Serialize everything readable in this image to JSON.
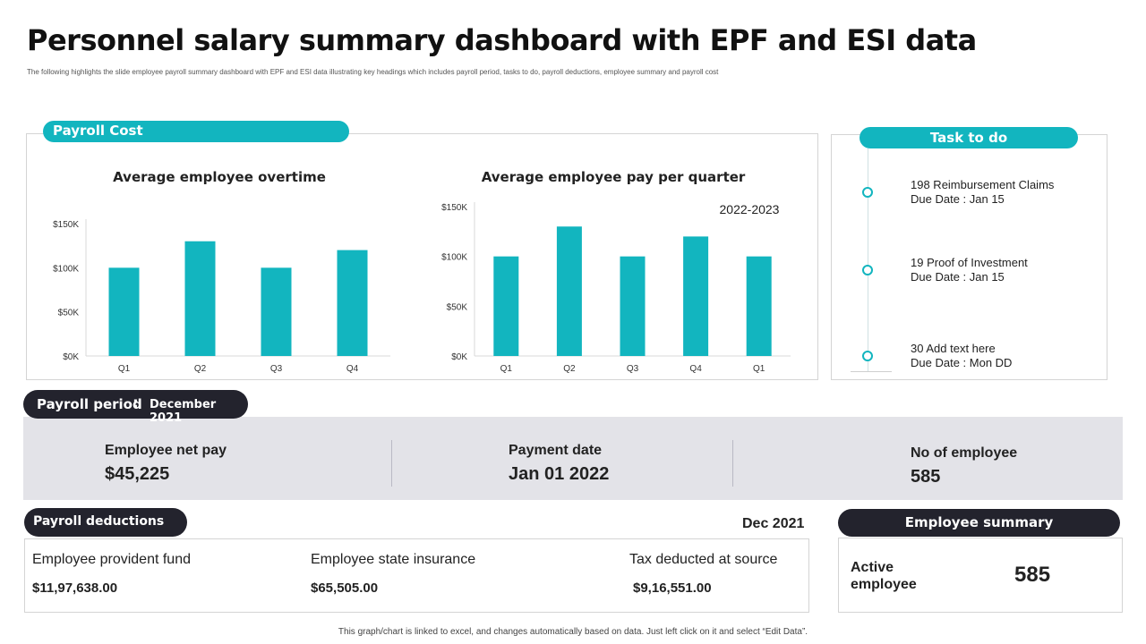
{
  "header": {
    "title": "Personnel salary summary dashboard with EPF and ESI data",
    "subtitle": "The  following highlights the slide employee payroll summary dashboard with EPF and ESI data illustrating key headings which includes payroll period,  tasks to do,  payroll deductions, employee summary and payroll cost"
  },
  "payroll_cost": {
    "label": "Payroll Cost"
  },
  "chart_data": [
    {
      "type": "bar",
      "title": "Average employee overtime",
      "categories": [
        "Q1",
        "Q2",
        "Q3",
        "Q4"
      ],
      "values": [
        100000,
        130000,
        100000,
        120000
      ],
      "yticks": [
        "$0K",
        "$50K",
        "$100K",
        "$150K"
      ],
      "ylim": [
        0,
        150000
      ],
      "color": "#12b5bf",
      "annotation": ""
    },
    {
      "type": "bar",
      "title": "Average employee pay per quarter",
      "categories": [
        "Q1",
        "Q2",
        "Q3",
        "Q4",
        "Q1"
      ],
      "values": [
        100000,
        130000,
        100000,
        120000,
        100000
      ],
      "yticks": [
        "$0K",
        "$50K",
        "$100K",
        "$150K"
      ],
      "ylim": [
        0,
        150000
      ],
      "color": "#12b5bf",
      "annotation": "2022-2023"
    }
  ],
  "tasks": {
    "label": "Task to do",
    "items": [
      {
        "title": "198 Reimbursement  Claims",
        "due": "Due Date : Jan 15"
      },
      {
        "title": "19 Proof  of Investment",
        "due": "Due Date : Jan 15"
      },
      {
        "title": "30 Add text here",
        "due": "Due Date : Mon DD"
      }
    ]
  },
  "payroll_period": {
    "label": "Payroll period",
    "colon": ":",
    "value": "December 2021",
    "net_pay_label": "Employee net pay",
    "net_pay_value": "$45,225",
    "payment_date_label": "Payment date",
    "payment_date_value": "Jan 01 2022",
    "employees_label": "No of employee",
    "employees_value": "585"
  },
  "deductions": {
    "label": "Payroll deductions",
    "date": "Dec 2021",
    "items": [
      {
        "label": "Employee provident fund",
        "value": "$11,97,638.00"
      },
      {
        "label": "Employee state insurance",
        "value": "$65,505.00"
      },
      {
        "label": "Tax deducted at source",
        "value": "$9,16,551.00"
      }
    ]
  },
  "employee_summary": {
    "label": "Employee summary",
    "active_label_1": "Active",
    "active_label_2": "employee",
    "active_value": "585"
  },
  "footnote": "This graph/chart is linked to excel, and changes automatically based on data. Just left click on it and select “Edit Data”."
}
